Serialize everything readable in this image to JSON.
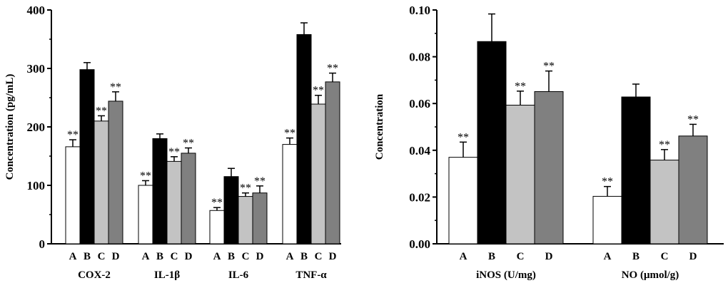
{
  "colors": {
    "A": "#ffffff",
    "B": "#000000",
    "C": "#c3c3c3",
    "D": "#808080",
    "axis": "#000000"
  },
  "chart_data": [
    {
      "type": "bar",
      "ylabel": "Concentration (pg/mL)",
      "ylim": [
        0,
        400
      ],
      "yticks": [
        "0",
        "100",
        "200",
        "300",
        "400"
      ],
      "series_labels": [
        "A",
        "B",
        "C",
        "D"
      ],
      "groups": [
        {
          "label": "COX-2",
          "values": [
            166,
            298,
            210,
            244
          ],
          "errors": [
            12,
            12,
            9,
            16
          ],
          "sig": [
            "**",
            "",
            "**",
            "**"
          ]
        },
        {
          "label": "IL-1β",
          "values": [
            100,
            180,
            141,
            155
          ],
          "errors": [
            8,
            8,
            8,
            9
          ],
          "sig": [
            "**",
            "",
            "**",
            "**"
          ]
        },
        {
          "label": "IL-6",
          "values": [
            57,
            115,
            81,
            87
          ],
          "errors": [
            5,
            14,
            6,
            12
          ],
          "sig": [
            "**",
            "",
            "**",
            "**"
          ]
        },
        {
          "label": "TNF-α",
          "values": [
            170,
            358,
            239,
            277
          ],
          "errors": [
            11,
            20,
            15,
            15
          ],
          "sig": [
            "**",
            "",
            "**",
            "**"
          ]
        }
      ]
    },
    {
      "type": "bar",
      "ylabel": "Concentration",
      "ylim": [
        0,
        0.1
      ],
      "yticks": [
        "0.00",
        "0.02",
        "0.04",
        "0.06",
        "0.08",
        "0.10"
      ],
      "series_labels": [
        "A",
        "B",
        "C",
        "D"
      ],
      "groups": [
        {
          "label": "iNOS (U/mg)",
          "values": [
            0.037,
            0.0865,
            0.0593,
            0.0651
          ],
          "errors": [
            0.0065,
            0.0118,
            0.006,
            0.0088
          ],
          "sig": [
            "**",
            "",
            "**",
            "**"
          ]
        },
        {
          "label": "NO (μmol/g)",
          "values": [
            0.0203,
            0.0628,
            0.0358,
            0.0461
          ],
          "errors": [
            0.0042,
            0.0055,
            0.0045,
            0.005
          ],
          "sig": [
            "**",
            "",
            "**",
            "**"
          ]
        }
      ]
    }
  ]
}
